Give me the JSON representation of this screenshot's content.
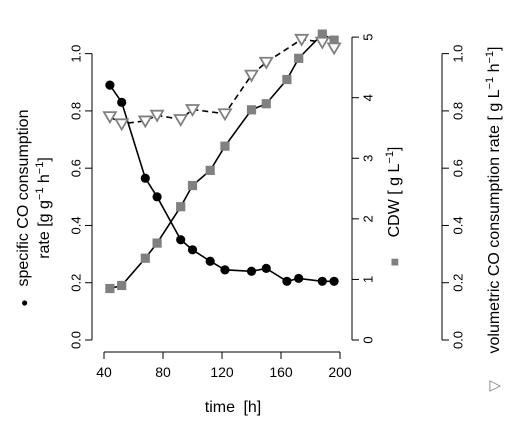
{
  "chart_data": {
    "type": "line",
    "x_axis": {
      "label_main": "time",
      "label_unit": "[h]",
      "range": [
        40,
        200
      ],
      "ticks": [
        40,
        80,
        120,
        160,
        200
      ]
    },
    "y_left": {
      "label_line1": "specific CO consumption",
      "label_line2": "rate [g g",
      "label_sup1": "−1",
      "label_mid": " h",
      "label_sup2": "−1",
      "label_end": "]",
      "marker_glyph": "●",
      "range": [
        0,
        1.1
      ],
      "ticks": [
        0.0,
        0.2,
        0.4,
        0.6,
        0.8,
        1.0
      ],
      "tick_labels": [
        "0.0",
        "0.2",
        "0.4",
        "0.6",
        "0.8",
        "1.0"
      ]
    },
    "y_mid": {
      "label_main": "CDW [ g L",
      "label_sup": "−1",
      "label_end": "]",
      "marker_glyph": "■",
      "range": [
        0,
        5.2
      ],
      "ticks": [
        0,
        1,
        2,
        3,
        4,
        5
      ],
      "tick_labels": [
        "0",
        "1",
        "2",
        "3",
        "4",
        "5"
      ]
    },
    "y_right": {
      "label_main": "volumetric CO consumption rate [ g L",
      "label_sup1": "−1",
      "label_mid": " h",
      "label_sup2": "−1",
      "label_end": "]",
      "marker_glyph": "▽",
      "range": [
        0,
        1.1
      ],
      "ticks": [
        0.0,
        0.2,
        0.4,
        0.6,
        0.8,
        1.0
      ],
      "tick_labels": [
        "0.0",
        "0.2",
        "0.4",
        "0.6",
        "0.8",
        "1.0"
      ]
    },
    "series": [
      {
        "axis": "left",
        "marker": "circle",
        "line": "solid",
        "color": "#000000",
        "x": [
          44,
          52,
          68,
          76,
          92,
          100,
          112,
          122,
          140,
          150,
          164,
          172,
          188,
          196
        ],
        "y": [
          0.89,
          0.83,
          0.565,
          0.5,
          0.35,
          0.315,
          0.275,
          0.245,
          0.24,
          0.25,
          0.205,
          0.215,
          0.205,
          0.205
        ]
      },
      {
        "axis": "mid",
        "marker": "square",
        "line": "solid",
        "color": "#808080",
        "x": [
          44,
          52,
          68,
          76,
          92,
          100,
          112,
          122,
          140,
          150,
          164,
          172,
          188,
          196
        ],
        "y": [
          0.85,
          0.9,
          1.35,
          1.6,
          2.2,
          2.55,
          2.8,
          3.2,
          3.8,
          3.9,
          4.3,
          4.65,
          5.05,
          4.95
        ]
      },
      {
        "axis": "right",
        "marker": "triangle-down",
        "line": "dashed",
        "color": "#808080",
        "x": [
          44,
          52,
          68,
          76,
          92,
          100,
          122,
          140,
          150,
          174,
          188,
          196
        ],
        "y": [
          0.78,
          0.755,
          0.765,
          0.785,
          0.77,
          0.805,
          0.79,
          0.925,
          0.97,
          1.05,
          1.04,
          1.02
        ]
      }
    ]
  }
}
